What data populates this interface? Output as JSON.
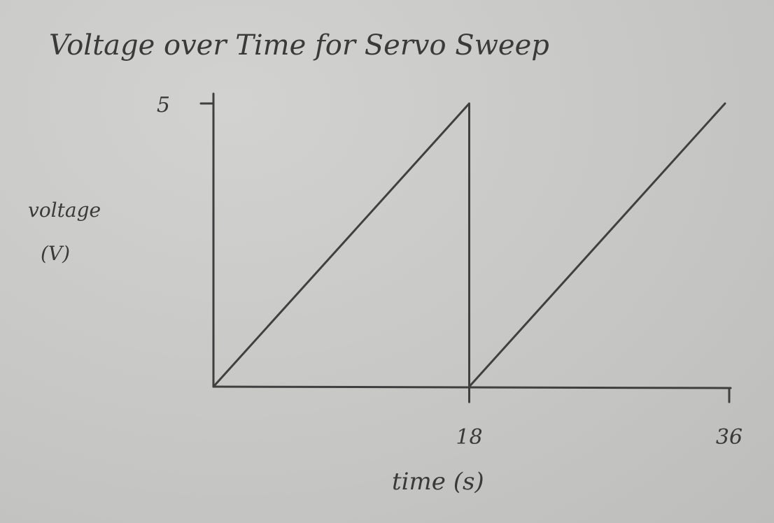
{
  "chart_data": {
    "type": "line",
    "title": "Voltage over Time for Servo Sweep",
    "xlabel": "time (s)",
    "ylabel_lines": [
      "voltage",
      "(V)"
    ],
    "x_ticks": [
      18,
      36
    ],
    "y_ticks": [
      5
    ],
    "xlim": [
      0,
      36
    ],
    "ylim": [
      0,
      5
    ],
    "grid": false,
    "series": [
      {
        "x": [
          0,
          18,
          18,
          36
        ],
        "y": [
          0,
          5,
          0,
          5
        ]
      }
    ]
  }
}
